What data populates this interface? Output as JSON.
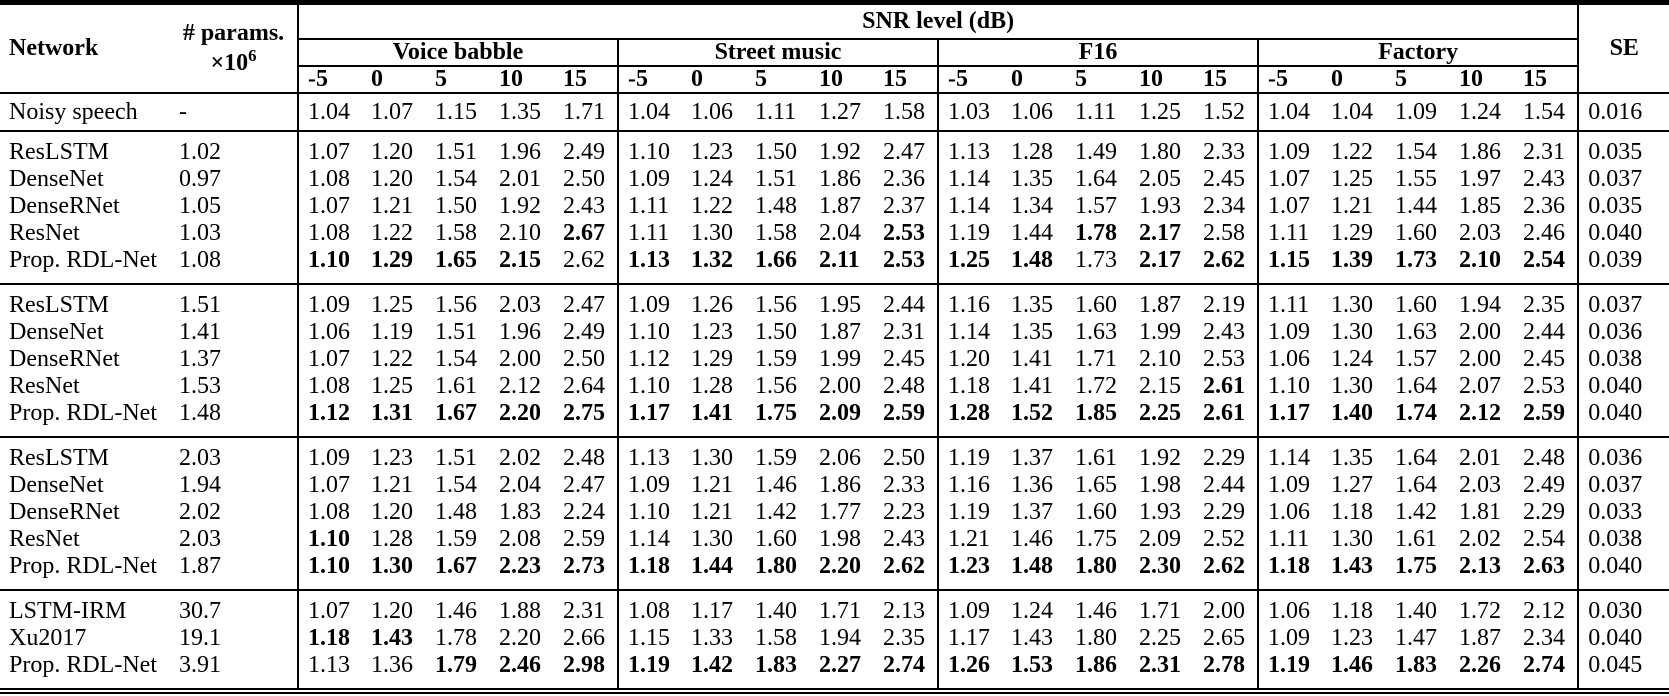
{
  "header": {
    "network": "Network",
    "params_line1": "# params.",
    "params_x10": "×10",
    "params_exp": "6",
    "snr_span": "SNR level (dB)",
    "noise_types": [
      "Voice babble",
      "Street music",
      "F16",
      "Factory"
    ],
    "snr_levels": [
      "-5",
      "0",
      "5",
      "10",
      "15"
    ],
    "se": "SE"
  },
  "baseline": {
    "network": "Noisy speech",
    "params": "-",
    "values": [
      "1.04",
      "1.07",
      "1.15",
      "1.35",
      "1.71",
      "1.04",
      "1.06",
      "1.11",
      "1.27",
      "1.58",
      "1.03",
      "1.06",
      "1.11",
      "1.25",
      "1.52",
      "1.04",
      "1.04",
      "1.09",
      "1.24",
      "1.54"
    ],
    "bold": [],
    "se": "0.016"
  },
  "sections": [
    {
      "rows": [
        {
          "network": "ResLSTM",
          "params": "1.02",
          "values": [
            "1.07",
            "1.20",
            "1.51",
            "1.96",
            "2.49",
            "1.10",
            "1.23",
            "1.50",
            "1.92",
            "2.47",
            "1.13",
            "1.28",
            "1.49",
            "1.80",
            "2.33",
            "1.09",
            "1.22",
            "1.54",
            "1.86",
            "2.31"
          ],
          "bold": [],
          "se": "0.035"
        },
        {
          "network": "DenseNet",
          "params": "0.97",
          "values": [
            "1.08",
            "1.20",
            "1.54",
            "2.01",
            "2.50",
            "1.09",
            "1.24",
            "1.51",
            "1.86",
            "2.36",
            "1.14",
            "1.35",
            "1.64",
            "2.05",
            "2.45",
            "1.07",
            "1.25",
            "1.55",
            "1.97",
            "2.43"
          ],
          "bold": [],
          "se": "0.037"
        },
        {
          "network": "DenseRNet",
          "params": "1.05",
          "values": [
            "1.07",
            "1.21",
            "1.50",
            "1.92",
            "2.43",
            "1.11",
            "1.22",
            "1.48",
            "1.87",
            "2.37",
            "1.14",
            "1.34",
            "1.57",
            "1.93",
            "2.34",
            "1.07",
            "1.21",
            "1.44",
            "1.85",
            "2.36"
          ],
          "bold": [],
          "se": "0.035"
        },
        {
          "network": "ResNet",
          "params": "1.03",
          "values": [
            "1.08",
            "1.22",
            "1.58",
            "2.10",
            "2.67",
            "1.11",
            "1.30",
            "1.58",
            "2.04",
            "2.53",
            "1.19",
            "1.44",
            "1.78",
            "2.17",
            "2.58",
            "1.11",
            "1.29",
            "1.60",
            "2.03",
            "2.46"
          ],
          "bold": [
            4,
            9,
            12,
            13
          ],
          "se": "0.040"
        },
        {
          "network": "Prop. RDL-Net",
          "params": "1.08",
          "values": [
            "1.10",
            "1.29",
            "1.65",
            "2.15",
            "2.62",
            "1.13",
            "1.32",
            "1.66",
            "2.11",
            "2.53",
            "1.25",
            "1.48",
            "1.73",
            "2.17",
            "2.62",
            "1.15",
            "1.39",
            "1.73",
            "2.10",
            "2.54"
          ],
          "bold": [
            0,
            1,
            2,
            3,
            5,
            6,
            7,
            8,
            9,
            10,
            11,
            13,
            14,
            15,
            16,
            17,
            18,
            19
          ],
          "se": "0.039"
        }
      ]
    },
    {
      "rows": [
        {
          "network": "ResLSTM",
          "params": "1.51",
          "values": [
            "1.09",
            "1.25",
            "1.56",
            "2.03",
            "2.47",
            "1.09",
            "1.26",
            "1.56",
            "1.95",
            "2.44",
            "1.16",
            "1.35",
            "1.60",
            "1.87",
            "2.19",
            "1.11",
            "1.30",
            "1.60",
            "1.94",
            "2.35"
          ],
          "bold": [],
          "se": "0.037"
        },
        {
          "network": "DenseNet",
          "params": "1.41",
          "values": [
            "1.06",
            "1.19",
            "1.51",
            "1.96",
            "2.49",
            "1.10",
            "1.23",
            "1.50",
            "1.87",
            "2.31",
            "1.14",
            "1.35",
            "1.63",
            "1.99",
            "2.43",
            "1.09",
            "1.30",
            "1.63",
            "2.00",
            "2.44"
          ],
          "bold": [],
          "se": "0.036"
        },
        {
          "network": "DenseRNet",
          "params": "1.37",
          "values": [
            "1.07",
            "1.22",
            "1.54",
            "2.00",
            "2.50",
            "1.12",
            "1.29",
            "1.59",
            "1.99",
            "2.45",
            "1.20",
            "1.41",
            "1.71",
            "2.10",
            "2.53",
            "1.06",
            "1.24",
            "1.57",
            "2.00",
            "2.45"
          ],
          "bold": [],
          "se": "0.038"
        },
        {
          "network": "ResNet",
          "params": "1.53",
          "values": [
            "1.08",
            "1.25",
            "1.61",
            "2.12",
            "2.64",
            "1.10",
            "1.28",
            "1.56",
            "2.00",
            "2.48",
            "1.18",
            "1.41",
            "1.72",
            "2.15",
            "2.61",
            "1.10",
            "1.30",
            "1.64",
            "2.07",
            "2.53"
          ],
          "bold": [
            14
          ],
          "se": "0.040"
        },
        {
          "network": "Prop. RDL-Net",
          "params": "1.48",
          "values": [
            "1.12",
            "1.31",
            "1.67",
            "2.20",
            "2.75",
            "1.17",
            "1.41",
            "1.75",
            "2.09",
            "2.59",
            "1.28",
            "1.52",
            "1.85",
            "2.25",
            "2.61",
            "1.17",
            "1.40",
            "1.74",
            "2.12",
            "2.59"
          ],
          "bold": [
            0,
            1,
            2,
            3,
            4,
            5,
            6,
            7,
            8,
            9,
            10,
            11,
            12,
            13,
            14,
            15,
            16,
            17,
            18,
            19
          ],
          "se": "0.040"
        }
      ]
    },
    {
      "rows": [
        {
          "network": "ResLSTM",
          "params": "2.03",
          "values": [
            "1.09",
            "1.23",
            "1.51",
            "2.02",
            "2.48",
            "1.13",
            "1.30",
            "1.59",
            "2.06",
            "2.50",
            "1.19",
            "1.37",
            "1.61",
            "1.92",
            "2.29",
            "1.14",
            "1.35",
            "1.64",
            "2.01",
            "2.48"
          ],
          "bold": [],
          "se": "0.036"
        },
        {
          "network": "DenseNet",
          "params": "1.94",
          "values": [
            "1.07",
            "1.21",
            "1.54",
            "2.04",
            "2.47",
            "1.09",
            "1.21",
            "1.46",
            "1.86",
            "2.33",
            "1.16",
            "1.36",
            "1.65",
            "1.98",
            "2.44",
            "1.09",
            "1.27",
            "1.64",
            "2.03",
            "2.49"
          ],
          "bold": [],
          "se": "0.037"
        },
        {
          "network": "DenseRNet",
          "params": "2.02",
          "values": [
            "1.08",
            "1.20",
            "1.48",
            "1.83",
            "2.24",
            "1.10",
            "1.21",
            "1.42",
            "1.77",
            "2.23",
            "1.19",
            "1.37",
            "1.60",
            "1.93",
            "2.29",
            "1.06",
            "1.18",
            "1.42",
            "1.81",
            "2.29"
          ],
          "bold": [],
          "se": "0.033"
        },
        {
          "network": "ResNet",
          "params": "2.03",
          "values": [
            "1.10",
            "1.28",
            "1.59",
            "2.08",
            "2.59",
            "1.14",
            "1.30",
            "1.60",
            "1.98",
            "2.43",
            "1.21",
            "1.46",
            "1.75",
            "2.09",
            "2.52",
            "1.11",
            "1.30",
            "1.61",
            "2.02",
            "2.54"
          ],
          "bold": [
            0
          ],
          "se": "0.038"
        },
        {
          "network": "Prop. RDL-Net",
          "params": "1.87",
          "values": [
            "1.10",
            "1.30",
            "1.67",
            "2.23",
            "2.73",
            "1.18",
            "1.44",
            "1.80",
            "2.20",
            "2.62",
            "1.23",
            "1.48",
            "1.80",
            "2.30",
            "2.62",
            "1.18",
            "1.43",
            "1.75",
            "2.13",
            "2.63"
          ],
          "bold": [
            0,
            1,
            2,
            3,
            4,
            5,
            6,
            7,
            8,
            9,
            10,
            11,
            12,
            13,
            14,
            15,
            16,
            17,
            18,
            19
          ],
          "se": "0.040"
        }
      ]
    },
    {
      "rows": [
        {
          "network": "LSTM-IRM",
          "params": "30.7",
          "values": [
            "1.07",
            "1.20",
            "1.46",
            "1.88",
            "2.31",
            "1.08",
            "1.17",
            "1.40",
            "1.71",
            "2.13",
            "1.09",
            "1.24",
            "1.46",
            "1.71",
            "2.00",
            "1.06",
            "1.18",
            "1.40",
            "1.72",
            "2.12"
          ],
          "bold": [],
          "se": "0.030"
        },
        {
          "network": "Xu2017",
          "params": "19.1",
          "values": [
            "1.18",
            "1.43",
            "1.78",
            "2.20",
            "2.66",
            "1.15",
            "1.33",
            "1.58",
            "1.94",
            "2.35",
            "1.17",
            "1.43",
            "1.80",
            "2.25",
            "2.65",
            "1.09",
            "1.23",
            "1.47",
            "1.87",
            "2.34"
          ],
          "bold": [
            0,
            1
          ],
          "se": "0.040"
        },
        {
          "network": "Prop. RDL-Net",
          "params": "3.91",
          "values": [
            "1.13",
            "1.36",
            "1.79",
            "2.46",
            "2.98",
            "1.19",
            "1.42",
            "1.83",
            "2.27",
            "2.74",
            "1.26",
            "1.53",
            "1.86",
            "2.31",
            "2.78",
            "1.19",
            "1.46",
            "1.83",
            "2.26",
            "2.74"
          ],
          "bold": [
            2,
            3,
            4,
            5,
            6,
            7,
            8,
            9,
            10,
            11,
            12,
            13,
            14,
            15,
            16,
            17,
            18,
            19
          ],
          "se": "0.045"
        }
      ]
    }
  ]
}
